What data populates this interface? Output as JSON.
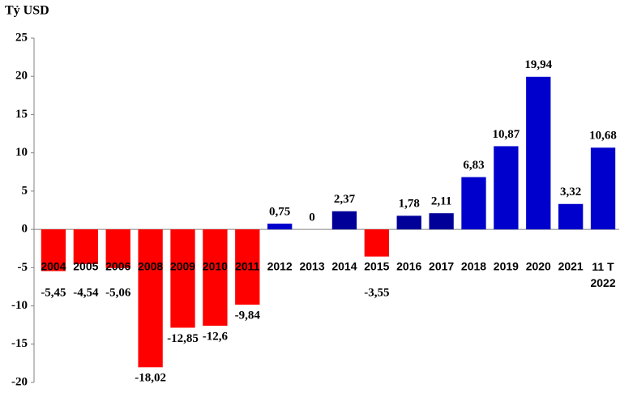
{
  "chart_data": {
    "type": "bar",
    "title": "Tỷ USD",
    "categories": [
      "2004",
      "2005",
      "2006",
      "2008",
      "2009",
      "2010",
      "2011",
      "2012",
      "2013",
      "2014",
      "2015",
      "2016",
      "2017",
      "2018",
      "2019",
      "2020",
      "2021",
      "11 T\n2022"
    ],
    "values": [
      -5.45,
      -4.54,
      -5.06,
      -18.02,
      -12.85,
      -12.6,
      -9.84,
      0.75,
      0,
      2.37,
      -3.55,
      1.78,
      2.11,
      6.83,
      10.87,
      19.94,
      3.32,
      10.68
    ],
    "value_labels": [
      "-5,45",
      "-4,54",
      "-5,06",
      "-18,02",
      "-12,85",
      "-12,6",
      "-9,84",
      "0,75",
      "0",
      "2,37",
      "-3,55",
      "1,78",
      "2,11",
      "6,83",
      "10,87",
      "19,94",
      "3,32",
      "10,68"
    ],
    "colors": [
      "#ff0000",
      "#ff0000",
      "#ff0000",
      "#ff0000",
      "#ff0000",
      "#ff0000",
      "#ff0000",
      "#0000cc",
      "#0000cc",
      "#000099",
      "#ff0000",
      "#000099",
      "#000099",
      "#0000cc",
      "#0000cc",
      "#0000cc",
      "#0000cc",
      "#0000cc"
    ],
    "ylim": [
      -20,
      25
    ],
    "yticks": [
      -20,
      -15,
      -10,
      -5,
      0,
      5,
      10,
      15,
      20,
      25
    ],
    "grid": false
  }
}
